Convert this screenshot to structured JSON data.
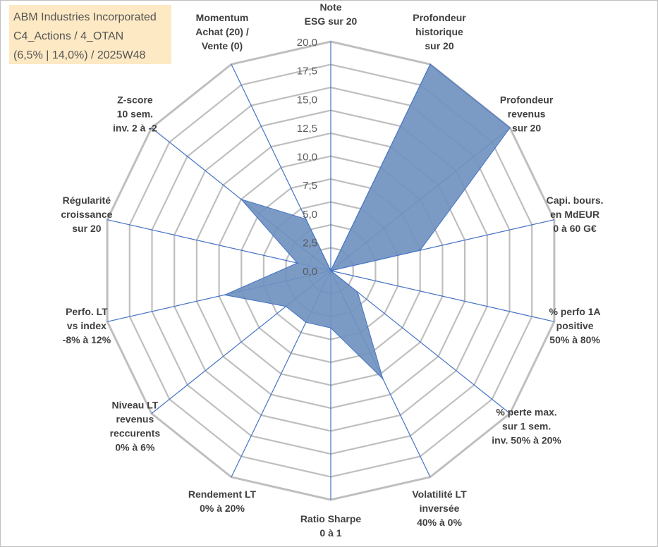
{
  "info_box": {
    "line1": "ABM Industries Incorporated",
    "line2": "C4_Actions / 4_OTAN",
    "line3": "(6,5% | 14,0%) / 2025W48"
  },
  "colors": {
    "fill": "#7093c0",
    "stroke": "#4472c4",
    "grid": "#bfbfbf",
    "spoke": "#4472c4",
    "text": "#404040"
  },
  "chart_data": {
    "type": "radar",
    "r_range": [
      0,
      20
    ],
    "ticks": [
      "0,0",
      "2,5",
      "5,0",
      "7,5",
      "10,0",
      "12,5",
      "15,0",
      "17,5",
      "20,0"
    ],
    "categories": [
      [
        "Note",
        "ESG sur 20"
      ],
      [
        "Profondeur",
        "historique",
        "sur 20"
      ],
      [
        "Profondeur",
        "revenus",
        "sur 20"
      ],
      [
        "Capi. bours.",
        "en MdEUR",
        "0 à 60 G€"
      ],
      [
        "% perfo 1A",
        "positive",
        "50% à 80%"
      ],
      [
        "% perte max.",
        "sur 1 sem.",
        "inv. 50% à 20%"
      ],
      [
        "Volatilité LT",
        "inversée",
        "40% à 0%"
      ],
      [
        "Ratio Sharpe",
        "0 à 1"
      ],
      [
        "Rendement LT",
        "0% à 20%"
      ],
      [
        "Niveau LT",
        "revenus",
        "reccurents",
        "0% à 6%"
      ],
      [
        "Perfo. LT",
        "vs index",
        "-8% à 12%"
      ],
      [
        "Régularité",
        "croissance",
        "sur 20"
      ],
      [
        "Z-score",
        "10 sem.",
        "inv. 2 à -2"
      ],
      [
        "Momentum",
        "Achat (20) /",
        "Vente (0)"
      ]
    ],
    "values": [
      0,
      20,
      20,
      8,
      0,
      3,
      10.5,
      5,
      5,
      5,
      9.5,
      3,
      10,
      5
    ]
  }
}
